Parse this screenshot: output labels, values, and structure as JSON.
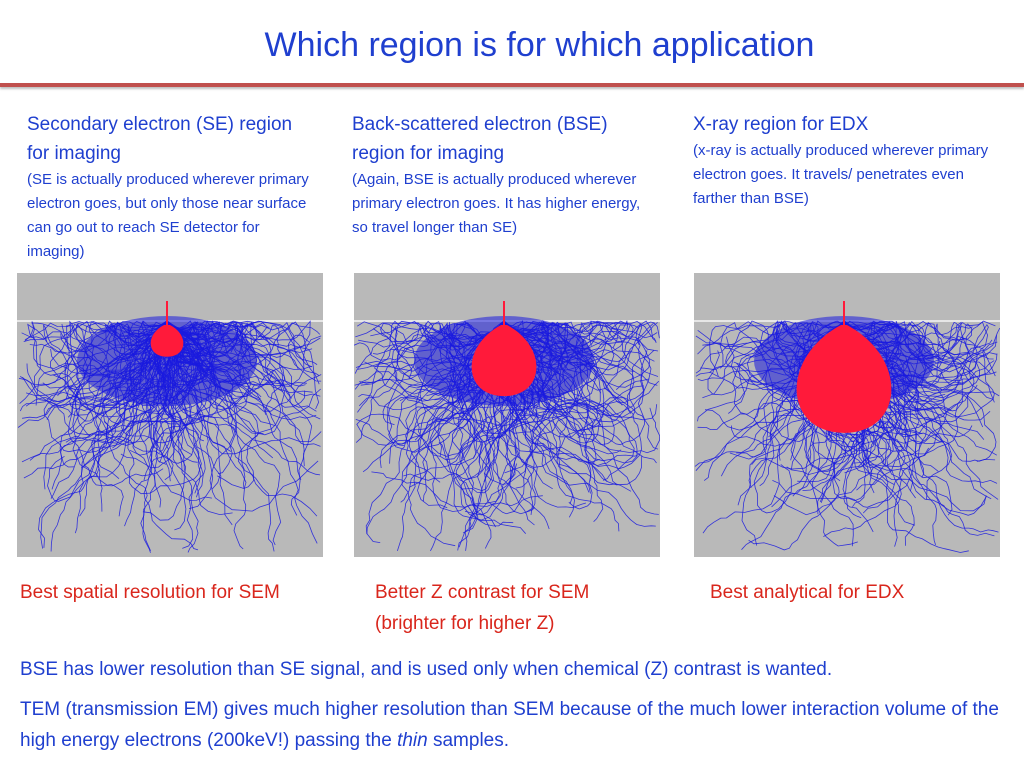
{
  "slide": {
    "title": "Which region is for which application"
  },
  "columns": [
    {
      "heading": "Secondary electron (SE) region for imaging",
      "detail": "(SE is actually produced wherever primary electron goes, but only those near surface can go out to reach SE detector for imaging)",
      "caption": "Best spatial resolution for SEM",
      "image": {
        "description_icon": "monte-carlo-se-region",
        "region_fraction": 0.12
      }
    },
    {
      "heading": "Back-scattered electron (BSE) region for imaging",
      "detail": "(Again, BSE is actually produced wherever primary electron goes. It has higher energy, so travel longer than SE)",
      "caption": "Better Z contrast for SEM (brighter for higher Z)",
      "image": {
        "description_icon": "monte-carlo-bse-region",
        "region_fraction": 0.42
      }
    },
    {
      "heading": "X-ray region for EDX",
      "detail": "(x-ray is actually produced wherever primary electron goes. It travels/ penetrates even farther than BSE)",
      "caption": "Best analytical for EDX",
      "image": {
        "description_icon": "monte-carlo-xray-region",
        "region_fraction": 0.7
      }
    }
  ],
  "notes": {
    "bse_note": "BSE has lower resolution than SE signal, and is used only when chemical (Z) contrast is wanted.",
    "tem_note_pre": "TEM (transmission EM) gives much higher resolution than SEM because of the much lower interaction volume of the high energy electrons (200keV!) passing the ",
    "tem_note_em": "thin",
    "tem_note_post": " samples."
  },
  "colors": {
    "title": "#1f3fcf",
    "accent_rule": "#c0504d",
    "caption": "#d9261c",
    "trajectories": "#1a1adf",
    "region": "#ff1a3a",
    "sim_background": "#b9b9b9"
  }
}
